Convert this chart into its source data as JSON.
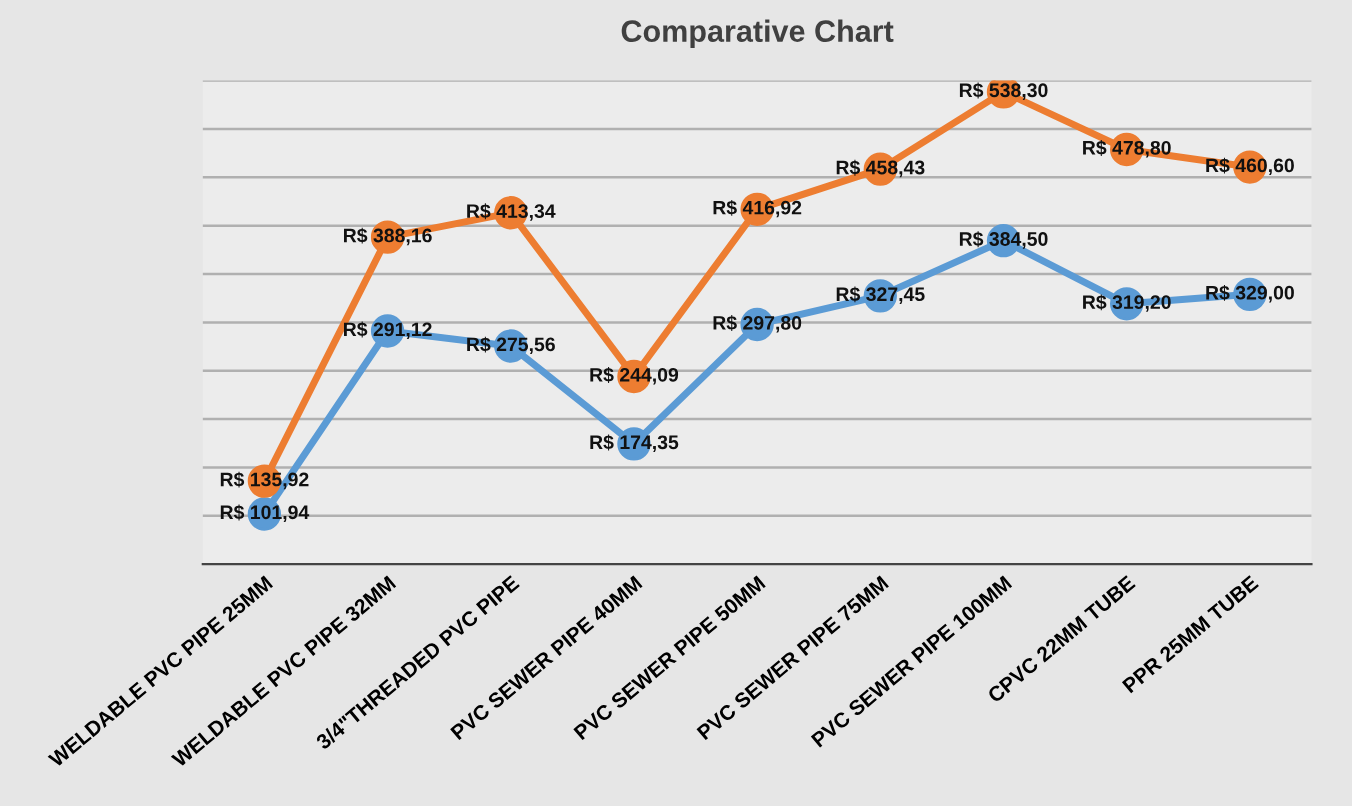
{
  "chart_data": {
    "type": "line",
    "title": "Comparative Chart",
    "categories": [
      "WELDABLE PVC PIPE 25MM",
      "WELDABLE PVC PIPE 32MM",
      "3/4\"THREADED PVC PIPE",
      "PVC SEWER PIPE 40MM",
      "PVC SEWER PIPE 50MM",
      "PVC SEWER PIPE 75MM",
      "PVC SEWER PIPE 100MM",
      "CPVC 22MM TUBE",
      "PPR 25MM TUBE"
    ],
    "series": [
      {
        "color": "#5b9bd5",
        "values": [
          101.94,
          291.12,
          275.56,
          174.35,
          297.8,
          327.45,
          384.5,
          319.2,
          329.0
        ],
        "value_labels": [
          "R$ 101,94",
          "R$ 291,12",
          "R$ 275,56",
          "R$ 174,35",
          "R$ 297,80",
          "R$ 327,45",
          "R$ 384,50",
          "R$ 319,20",
          "R$ 329,00"
        ]
      },
      {
        "color": "#ed7d31",
        "values": [
          135.92,
          388.16,
          413.34,
          244.09,
          416.92,
          458.43,
          538.3,
          478.8,
          460.6
        ],
        "value_labels": [
          "R$ 135,92",
          "R$ 388,16",
          "R$ 413,34",
          "R$ 244,09",
          "R$ 416,92",
          "R$ 458,43",
          "R$ 538,30",
          "R$ 478,80",
          "R$ 460,60"
        ]
      }
    ],
    "ylim": [
      50,
      550
    ],
    "yticks": [
      {
        "value": 50,
        "label": null
      },
      {
        "value": 100,
        "label": null
      },
      {
        "value": 150,
        "label": null
      },
      {
        "value": 200,
        "label": null
      },
      {
        "value": 250,
        "label": null
      },
      {
        "value": 300,
        "label": null
      },
      {
        "value": 350,
        "label": null
      },
      {
        "value": 400,
        "label": null
      },
      {
        "value": 450,
        "label": null
      },
      {
        "value": 500,
        "label": null
      },
      {
        "value": 550,
        "label": null
      }
    ],
    "tick_labels": "x",
    "grid": "y",
    "marker": "circle",
    "line_style": "solid",
    "legend": false
  }
}
